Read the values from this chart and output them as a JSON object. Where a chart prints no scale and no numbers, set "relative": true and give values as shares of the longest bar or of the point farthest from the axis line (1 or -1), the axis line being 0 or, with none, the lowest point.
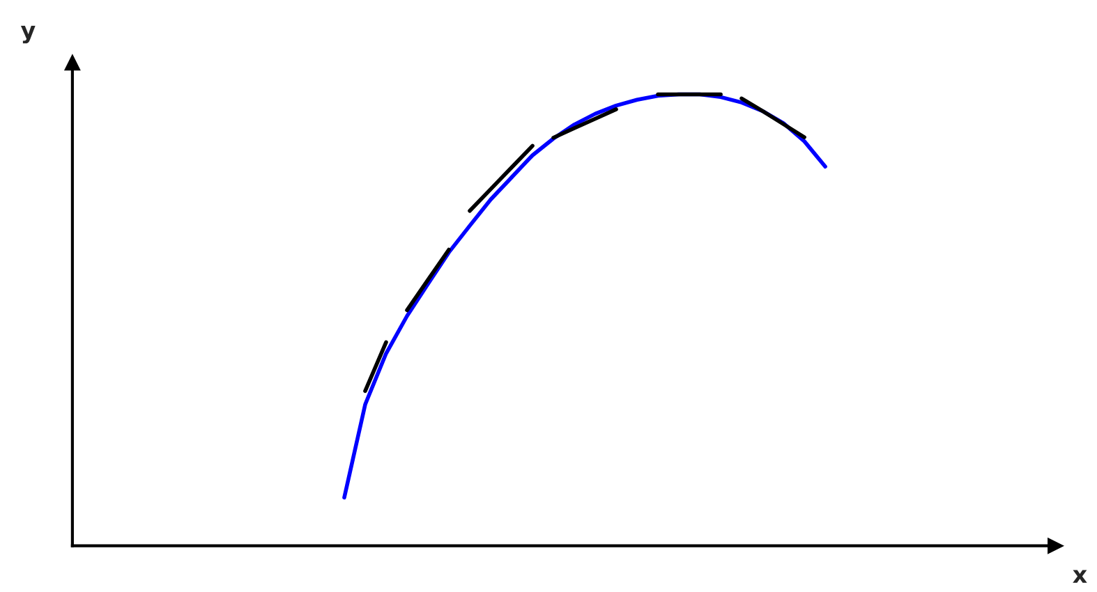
{
  "chart_data": {
    "type": "line",
    "xlabel": "x",
    "ylabel": "y",
    "relative": true,
    "marker": "none",
    "line_style": "solid",
    "categories": [
      null,
      null,
      null,
      null,
      null,
      null,
      null,
      null,
      null,
      null,
      null,
      null,
      null,
      null,
      null,
      null,
      null,
      null,
      null,
      null,
      null,
      null,
      null,
      null,
      null,
      null,
      null,
      null,
      null,
      null,
      null,
      null,
      null,
      null,
      null,
      null,
      null,
      null,
      null,
      null,
      null,
      null,
      null,
      null,
      null,
      null,
      null,
      null
    ],
    "series": [
      {
        "color": "#0000ff",
        "values": [
          null,
          null,
          null,
          null,
          null,
          null,
          null,
          null,
          null,
          null,
          null,
          null,
          null,
          0.107,
          0.313,
          0.426,
          0.509,
          0.58,
          0.65,
          0.709,
          0.767,
          0.816,
          0.865,
          0.902,
          0.933,
          0.957,
          0.975,
          0.988,
          0.997,
          1.0,
          1.0,
          0.994,
          0.982,
          0.963,
          0.936,
          0.896,
          0.84,
          null,
          null,
          null,
          null,
          null,
          null,
          null,
          null,
          null,
          null,
          null
        ]
      },
      {
        "color": "#000000",
        "values": [
          null,
          null,
          null,
          null,
          null,
          null,
          null,
          null,
          null,
          null,
          null,
          null,
          null,
          null,
          0.343,
          0.451,
          null,
          null,
          null,
          null,
          null,
          null,
          null,
          null,
          null,
          null,
          null,
          null,
          null,
          null,
          null,
          null,
          null,
          null,
          null,
          null,
          null,
          null,
          null,
          null,
          null,
          null,
          null,
          null,
          null,
          null,
          null,
          null
        ]
      },
      {
        "color": "#000000",
        "values": [
          null,
          null,
          null,
          null,
          null,
          null,
          null,
          null,
          null,
          null,
          null,
          null,
          null,
          null,
          null,
          null,
          0.522,
          0.589,
          0.656,
          null,
          null,
          null,
          null,
          null,
          null,
          null,
          null,
          null,
          null,
          null,
          null,
          null,
          null,
          null,
          null,
          null,
          null,
          null,
          null,
          null,
          null,
          null,
          null,
          null,
          null,
          null,
          null,
          null
        ]
      },
      {
        "color": "#000000",
        "values": [
          null,
          null,
          null,
          null,
          null,
          null,
          null,
          null,
          null,
          null,
          null,
          null,
          null,
          null,
          null,
          null,
          null,
          null,
          null,
          0.742,
          0.79,
          0.838,
          0.886,
          null,
          null,
          null,
          null,
          null,
          null,
          null,
          null,
          null,
          null,
          null,
          null,
          null,
          null,
          null,
          null,
          null,
          null,
          null,
          null,
          null,
          null,
          null,
          null,
          null
        ]
      },
      {
        "color": "#000000",
        "values": [
          null,
          null,
          null,
          null,
          null,
          null,
          null,
          null,
          null,
          null,
          null,
          null,
          null,
          null,
          null,
          null,
          null,
          null,
          null,
          null,
          null,
          null,
          null,
          0.904,
          0.925,
          0.946,
          0.967,
          null,
          null,
          null,
          null,
          null,
          null,
          null,
          null,
          null,
          null,
          null,
          null,
          null,
          null,
          null,
          null,
          null,
          null,
          null,
          null,
          null
        ]
      },
      {
        "color": "#000000",
        "values": [
          null,
          null,
          null,
          null,
          null,
          null,
          null,
          null,
          null,
          null,
          null,
          null,
          null,
          null,
          null,
          null,
          null,
          null,
          null,
          null,
          null,
          null,
          null,
          null,
          null,
          null,
          null,
          null,
          1.0,
          1.0,
          1.0,
          1.0,
          null,
          null,
          null,
          null,
          null,
          null,
          null,
          null,
          null,
          null,
          null,
          null,
          null,
          null,
          null,
          null
        ]
      },
      {
        "color": "#000000",
        "values": [
          null,
          null,
          null,
          null,
          null,
          null,
          null,
          null,
          null,
          null,
          null,
          null,
          null,
          null,
          null,
          null,
          null,
          null,
          null,
          null,
          null,
          null,
          null,
          null,
          null,
          null,
          null,
          null,
          null,
          null,
          null,
          null,
          0.991,
          0.963,
          0.934,
          0.905,
          null,
          null,
          null,
          null,
          null,
          null,
          null,
          null,
          null,
          null,
          null,
          null
        ]
      }
    ]
  }
}
